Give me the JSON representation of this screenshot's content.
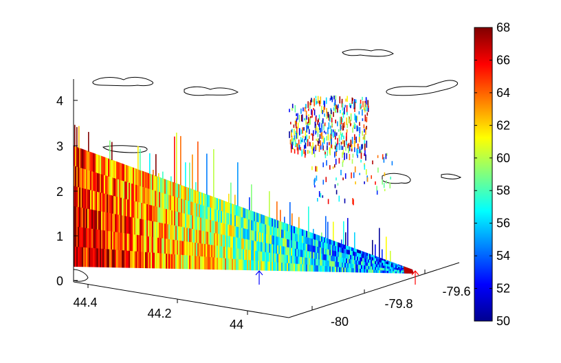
{
  "chart_data": {
    "type": "heatmap",
    "subtype": "3d-vertical-curtain",
    "title": "",
    "xlabel": "",
    "ylabel": "",
    "zlabel": "",
    "axes": {
      "z": {
        "ticks": [
          "0",
          "1",
          "2",
          "3",
          "4"
        ],
        "range": [
          0,
          4.5
        ]
      },
      "lat": {
        "ticks": [
          "44.4",
          "44.2",
          "44"
        ]
      },
      "lon": {
        "ticks": [
          "-80",
          "-79.8",
          "-79.6"
        ]
      }
    },
    "colorbar": {
      "ticks": [
        "50",
        "52",
        "54",
        "56",
        "58",
        "60",
        "62",
        "64",
        "66",
        "68"
      ],
      "range": [
        50,
        68
      ],
      "colormap": "jet"
    },
    "curtain": {
      "start": {
        "lat": 44.45,
        "lon": -80.05
      },
      "end": {
        "lat": 43.95,
        "lon": -79.72
      },
      "top_height_start": 3.0,
      "top_height_end": 0.1,
      "value_profile": [
        66,
        64,
        62,
        60,
        58,
        56,
        55,
        54
      ]
    },
    "markers": [
      {
        "name": "blue-arrow",
        "color": "#0000ff"
      },
      {
        "name": "red-arrow",
        "color": "#ff0000"
      }
    ],
    "grid": false
  }
}
